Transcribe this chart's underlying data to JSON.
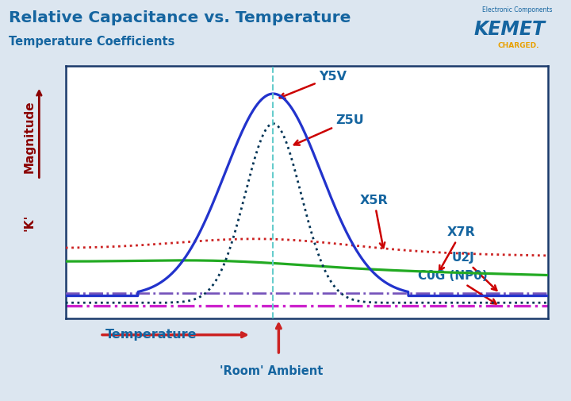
{
  "title": "Relative Capacitance vs. Temperature",
  "subtitle": "Temperature Coefficients",
  "title_color": "#1565a0",
  "subtitle_color": "#1565a0",
  "bg_color": "#dce6f0",
  "plot_bg_color": "#ffffff",
  "border_color": "#1a3a6b",
  "ylabel_top": "Magnitude",
  "ylabel_bottom": "'K'",
  "xlabel": "Temperature",
  "xlabel_color": "#1565a0",
  "ylabel_color": "#8B0000",
  "room_label": "'Room' Ambient",
  "label_color": "#1565a0",
  "arrow_color": "#cc0000",
  "y5v_color": "#2233cc",
  "z5u_color": "#003355",
  "x5r_color": "#cc2222",
  "x7r_color": "#22aa22",
  "u2j_color": "#7755bb",
  "c0g_color": "#cc22cc",
  "vline_color": "#66cccc"
}
